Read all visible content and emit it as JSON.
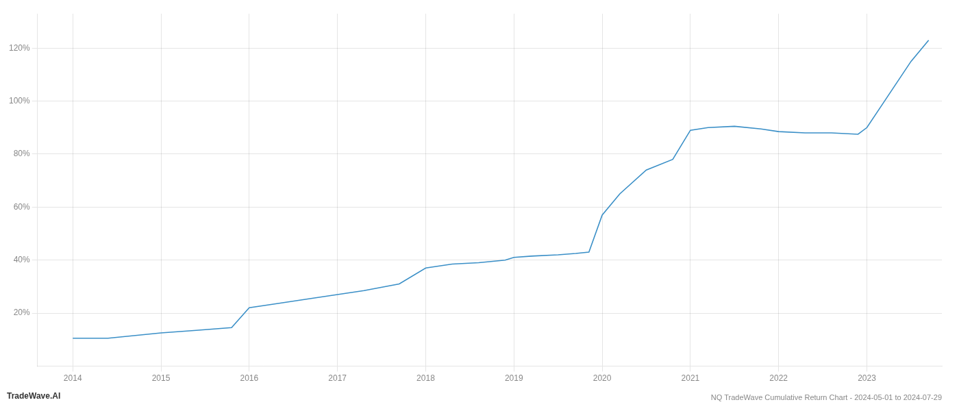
{
  "chart_data": {
    "type": "line",
    "title": "NQ TradeWave Cumulative Return Chart - 2024-05-01 to 2024-07-29",
    "annotations": [
      "TradeWave.AI"
    ],
    "x": [
      2014.0,
      2014.4,
      2015.0,
      2015.4,
      2015.8,
      2016.0,
      2016.3,
      2016.7,
      2017.0,
      2017.3,
      2017.7,
      2018.0,
      2018.3,
      2018.6,
      2018.9,
      2019.0,
      2019.2,
      2019.5,
      2019.7,
      2019.85,
      2020.0,
      2020.2,
      2020.5,
      2020.8,
      2021.0,
      2021.2,
      2021.5,
      2021.8,
      2022.0,
      2022.3,
      2022.6,
      2022.9,
      2023.0,
      2023.2,
      2023.5,
      2023.7
    ],
    "values": [
      10.5,
      10.5,
      12.5,
      13.5,
      14.5,
      22.0,
      23.5,
      25.5,
      27.0,
      28.5,
      31.0,
      37.0,
      38.5,
      39.0,
      40.0,
      41.0,
      41.5,
      42.0,
      42.5,
      43.0,
      57.0,
      65.0,
      74.0,
      78.0,
      89.0,
      90.0,
      90.5,
      89.5,
      88.5,
      88.0,
      88.0,
      87.5,
      90.0,
      100.0,
      115.0,
      123.0
    ],
    "color": "#3a8fc7",
    "xlim": [
      2013.6,
      2023.85
    ],
    "xticks": [
      2014,
      2015,
      2016,
      2017,
      2018,
      2019,
      2020,
      2021,
      2022,
      2023
    ],
    "ylim": [
      0,
      133
    ],
    "yticks": [
      {
        "value": 20,
        "label": "20%"
      },
      {
        "value": 40,
        "label": "40%"
      },
      {
        "value": 60,
        "label": "60%"
      },
      {
        "value": 80,
        "label": "80%"
      },
      {
        "value": 100,
        "label": "100%"
      },
      {
        "value": 120,
        "label": "120%"
      }
    ],
    "grid": true
  }
}
